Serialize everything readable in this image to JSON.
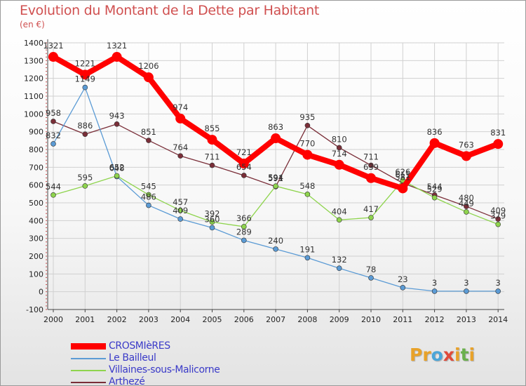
{
  "header": {
    "title": "Evolution du Montant de la Dette par Habitant",
    "unit": "(en €)"
  },
  "colors": {
    "title": "#d05050",
    "grid": "#d0d0d0",
    "axis": "#444444",
    "tick_marks": "#d05050",
    "legend_text": "#3a3ac8",
    "logo_letters": [
      "#e8a22a",
      "#e8a22a",
      "#4aa6d9",
      "#e04a3a",
      "#e8a22a",
      "#6ab04c"
    ]
  },
  "logo": {
    "text": "Proxiti"
  },
  "chart_data": {
    "type": "line",
    "title": "Evolution du Montant de la Dette par Habitant",
    "subtitle": "(en €)",
    "xlabel": "",
    "ylabel": "",
    "categories": [
      "2000",
      "2001",
      "2002",
      "2003",
      "2004",
      "2005",
      "2006",
      "2007",
      "2008",
      "2009",
      "2010",
      "2011",
      "2012",
      "2013",
      "2014"
    ],
    "ylim": [
      -100,
      1400
    ],
    "yticks": [
      "-100",
      "0",
      "100",
      "200",
      "300",
      "400",
      "500",
      "600",
      "700",
      "800",
      "900",
      "1000",
      "1100",
      "1200",
      "1300",
      "1400"
    ],
    "grid": true,
    "legend_position": "bottom-left",
    "series": [
      {
        "name": "CROSMIèRES",
        "color": "#ff0000",
        "width": 8,
        "marker": 7,
        "values": [
          1321,
          1221,
          1321,
          1206,
          974,
          855,
          721,
          863,
          770,
          714,
          639,
          581,
          836,
          763,
          831
        ],
        "labels": [
          "1321",
          "1221",
          "1321",
          "1206",
          "974",
          "855",
          "721",
          "863",
          "770",
          "714",
          "639",
          "581",
          "836",
          "763",
          "831"
        ]
      },
      {
        "name": "Le Bailleul",
        "color": "#5b9bd5",
        "width": 1.3,
        "marker": 3.5,
        "values": [
          832,
          1149,
          648,
          486,
          409,
          360,
          289,
          240,
          191,
          132,
          78,
          23,
          3,
          3,
          3
        ],
        "labels": [
          "832",
          "1149",
          "648",
          "486",
          "409",
          "360",
          "289",
          "240",
          "191",
          "132",
          "78",
          "23",
          "3",
          "3",
          "3"
        ]
      },
      {
        "name": "Villaines-sous-Malicorne",
        "color": "#8ed44d",
        "width": 1.3,
        "marker": 3.5,
        "values": [
          544,
          595,
          652,
          545,
          457,
          392,
          366,
          594,
          548,
          404,
          417,
          626,
          529,
          449,
          379
        ],
        "labels": [
          "544",
          "595",
          "652",
          "545",
          "457",
          "392",
          "366",
          "594",
          "548",
          "404",
          "417",
          "626",
          "529",
          "449",
          "379"
        ]
      },
      {
        "name": "Arthezé",
        "color": "#7a2e38",
        "width": 1.3,
        "marker": 3.5,
        "values": [
          958,
          886,
          943,
          851,
          764,
          711,
          654,
          591,
          935,
          810,
          711,
          611,
          544,
          480,
          409
        ],
        "labels": [
          "958",
          "886",
          "943",
          "851",
          "764",
          "711",
          "654",
          "591",
          "935",
          "810",
          "711",
          "611",
          "544",
          "480",
          "409"
        ]
      }
    ]
  }
}
